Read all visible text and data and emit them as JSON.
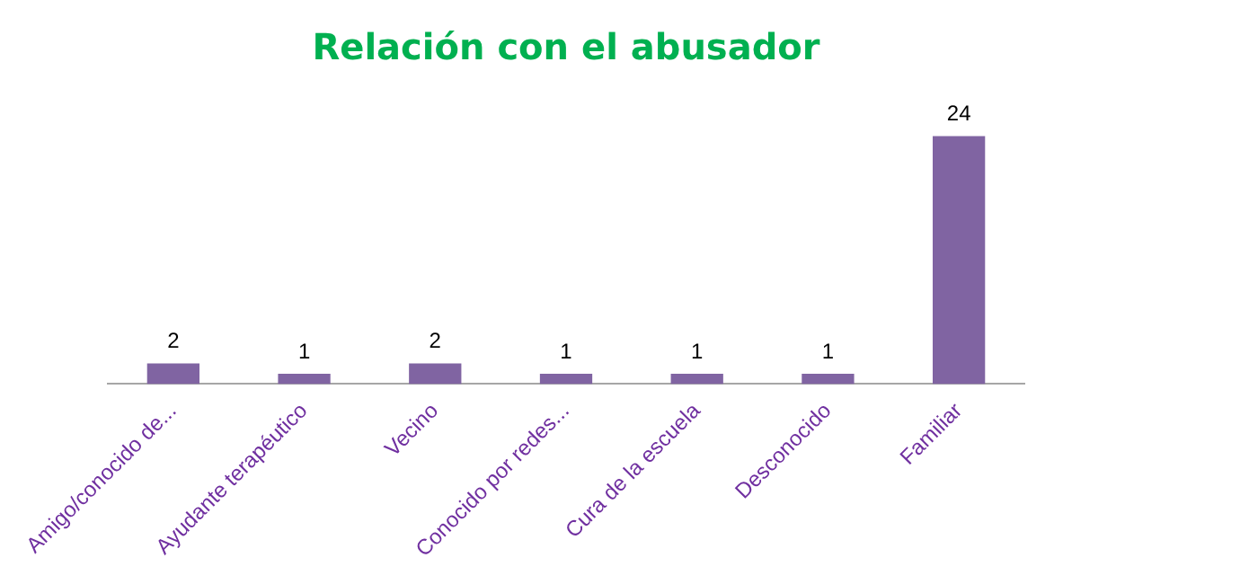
{
  "chart_data": {
    "type": "bar",
    "title": "Relación con el abusador",
    "categories": [
      "Amigo/conocido de...",
      "Ayudante terapéutico",
      "Vecino",
      "Conocido por redes...",
      "Cura de la escuela",
      "Desconocido",
      "Familiar"
    ],
    "values": [
      2,
      1,
      2,
      1,
      1,
      1,
      24
    ],
    "color": "#8064a2",
    "data_labels": true
  }
}
